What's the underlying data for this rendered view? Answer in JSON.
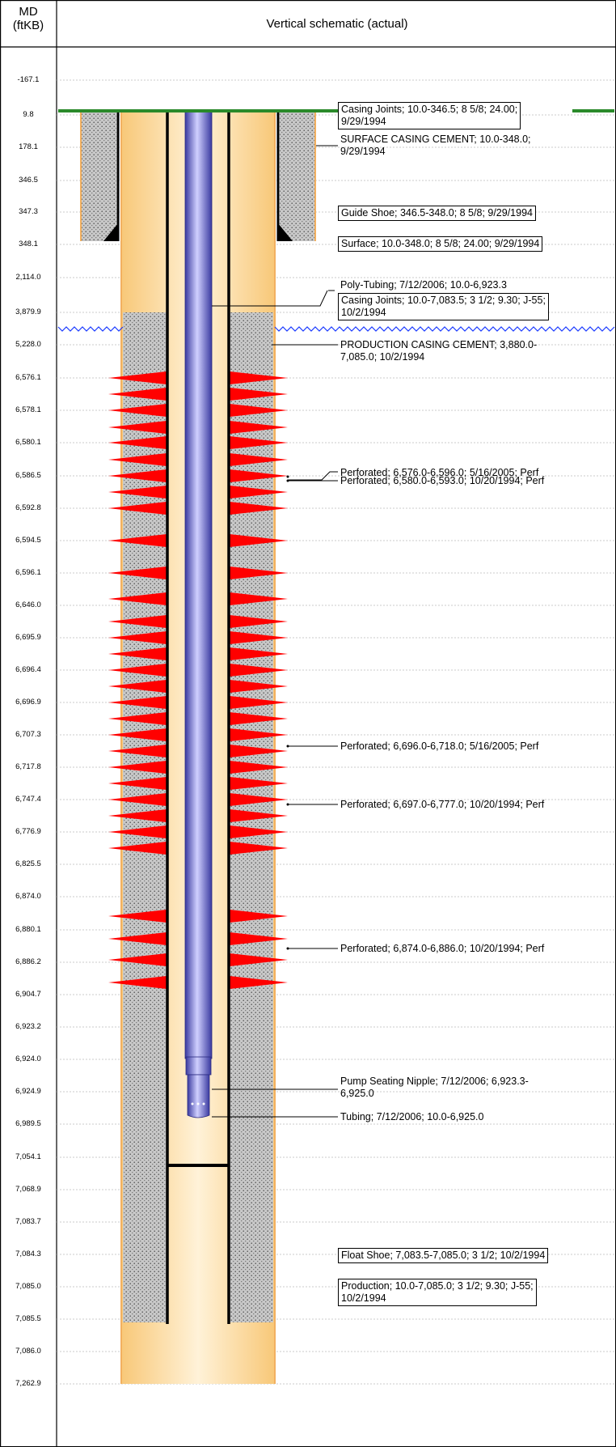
{
  "header": {
    "md_label": "MD",
    "md_unit": "(ftKB)",
    "title": "Vertical schematic (actual)"
  },
  "depth_ticks": [
    "-167.1",
    "9.8",
    "178.1",
    "346.5",
    "347.3",
    "348.1",
    "2,114.0",
    "3,879.9",
    "5,228.0",
    "6,576.1",
    "6,578.1",
    "6,580.1",
    "6,586.5",
    "6,592.8",
    "6,594.5",
    "6,596.1",
    "6,646.0",
    "6,695.9",
    "6,696.4",
    "6,696.9",
    "6,707.3",
    "6,717.8",
    "6,747.4",
    "6,776.9",
    "6,825.5",
    "6,874.0",
    "6,880.1",
    "6,886.2",
    "6,904.7",
    "6,923.2",
    "6,924.0",
    "6,924.9",
    "6,989.5",
    "7,054.1",
    "7,068.9",
    "7,083.7",
    "7,084.3",
    "7,085.0",
    "7,085.5",
    "7,086.0",
    "7,262.9"
  ],
  "annotations": [
    {
      "text_lines": [
        "Casing Joints; 10.0-346.5; 8 5/8; 24.00;",
        "9/29/1994"
      ],
      "boxed": true
    },
    {
      "text_lines": [
        "SURFACE CASING CEMENT; 10.0-348.0;",
        "9/29/1994"
      ],
      "boxed": false
    },
    {
      "text_lines": [
        "Guide Shoe; 346.5-348.0; 8 5/8; 9/29/1994"
      ],
      "boxed": true
    },
    {
      "text_lines": [
        "Surface; 10.0-348.0; 8 5/8; 24.00; 9/29/1994"
      ],
      "boxed": true
    },
    {
      "text_lines": [
        "Poly-Tubing; 7/12/2006; 10.0-6,923.3"
      ],
      "boxed": false
    },
    {
      "text_lines": [
        "Casing Joints; 10.0-7,083.5; 3 1/2; 9.30; J-55;",
        "10/2/1994"
      ],
      "boxed": true
    },
    {
      "text_lines": [
        "PRODUCTION CASING CEMENT; 3,880.0-",
        "7,085.0; 10/2/1994"
      ],
      "boxed": false
    },
    {
      "text_lines": [
        "Perforated; 6,576.0-6,596.0; 5/16/2005; Perf"
      ],
      "boxed": false
    },
    {
      "text_lines": [
        "Perforated; 6,580.0-6,593.0; 10/20/1994; Perf"
      ],
      "boxed": false
    },
    {
      "text_lines": [
        "Perforated; 6,696.0-6,718.0; 5/16/2005; Perf"
      ],
      "boxed": false
    },
    {
      "text_lines": [
        "Perforated; 6,697.0-6,777.0; 10/20/1994; Perf"
      ],
      "boxed": false
    },
    {
      "text_lines": [
        "Perforated; 6,874.0-6,886.0; 10/20/1994; Perf"
      ],
      "boxed": false
    },
    {
      "text_lines": [
        "Pump Seating Nipple; 7/12/2006; 6,923.3-",
        "6,925.0"
      ],
      "boxed": false
    },
    {
      "text_lines": [
        "Tubing; 7/12/2006; 10.0-6,925.0"
      ],
      "boxed": false
    },
    {
      "text_lines": [
        "Float Shoe; 7,083.5-7,085.0; 3 1/2; 10/2/1994"
      ],
      "boxed": true
    },
    {
      "text_lines": [
        "Production; 10.0-7,085.0; 3 1/2; 9.30; J-55;",
        "10/2/1994"
      ],
      "boxed": true
    }
  ],
  "colors": {
    "hole_fill": "#fde3b4",
    "hole_edge": "#f2b860",
    "cement": "#c4c4c4",
    "casing": "#000000",
    "tubing": "#6a6ac8",
    "perforation": "#ff0000",
    "ground": "#2a8a2a",
    "water_line": "#1a3aff"
  }
}
